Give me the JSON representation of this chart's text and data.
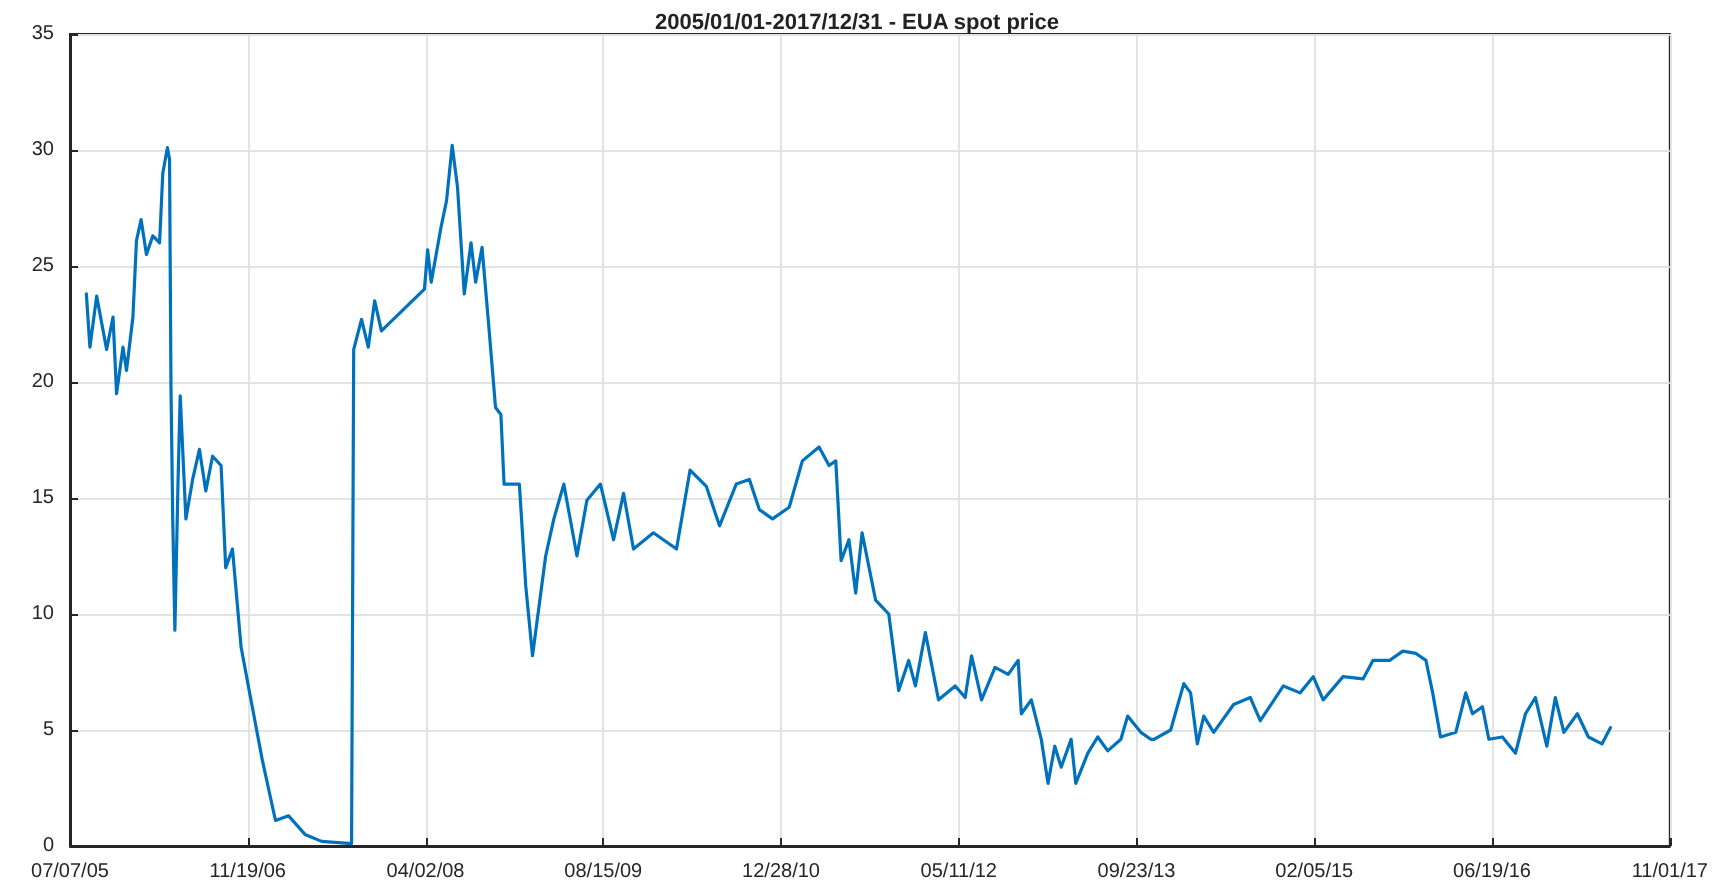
{
  "chart_data": {
    "type": "line",
    "title": "2005/01/01-2017/12/31 - EUA spot price",
    "x": [
      "2005-08-22",
      "2005-09-01",
      "2005-09-20",
      "2005-10-18",
      "2005-11-05",
      "2005-11-15",
      "2005-12-03",
      "2005-12-13",
      "2005-12-31",
      "2006-01-10",
      "2006-01-23",
      "2006-02-07",
      "2006-02-25",
      "2006-03-16",
      "2006-03-25",
      "2006-04-07",
      "2006-04-13",
      "2006-04-17",
      "2006-04-22",
      "2006-04-28",
      "2006-05-07",
      "2006-05-13",
      "2006-05-29",
      "2006-06-17",
      "2006-07-06",
      "2006-07-24",
      "2006-08-12",
      "2006-09-05",
      "2006-09-18",
      "2006-10-07",
      "2006-10-31",
      "2006-11-23",
      "2006-12-30",
      "2007-02-05",
      "2007-03-14",
      "2007-04-29",
      "2007-06-15",
      "2007-09-07",
      "2007-09-13",
      "2007-10-05",
      "2007-10-24",
      "2007-11-11",
      "2007-11-30",
      "2008-03-30",
      "2008-04-08",
      "2008-04-18",
      "2008-05-16",
      "2008-05-31",
      "2008-06-16",
      "2008-07-01",
      "2008-07-20",
      "2008-08-08",
      "2008-08-21",
      "2008-09-08",
      "2008-09-27",
      "2008-10-16",
      "2008-10-31",
      "2008-11-09",
      "2008-12-03",
      "2008-12-22",
      "2009-01-09",
      "2009-01-28",
      "2009-02-15",
      "2009-03-06",
      "2009-03-29",
      "2009-04-26",
      "2009-06-02",
      "2009-06-30",
      "2009-08-07",
      "2009-09-13",
      "2009-10-11",
      "2009-11-08",
      "2010-01-03",
      "2010-03-09",
      "2010-04-16",
      "2010-06-01",
      "2010-07-08",
      "2010-08-24",
      "2010-09-30",
      "2010-10-28",
      "2010-12-04",
      "2011-01-20",
      "2011-02-26",
      "2011-04-14",
      "2011-05-12",
      "2011-05-31",
      "2011-06-15",
      "2011-07-07",
      "2011-07-26",
      "2011-08-13",
      "2011-09-20",
      "2011-10-27",
      "2011-11-24",
      "2011-12-22",
      "2012-01-10",
      "2012-02-07",
      "2012-03-15",
      "2012-05-01",
      "2012-05-29",
      "2012-06-16",
      "2012-07-14",
      "2012-08-21",
      "2012-09-27",
      "2012-10-25",
      "2012-11-03",
      "2012-12-01",
      "2012-12-29",
      "2013-01-17",
      "2013-02-05",
      "2013-02-23",
      "2013-03-23",
      "2013-04-05",
      "2013-05-09",
      "2013-06-06",
      "2013-07-04",
      "2013-08-10",
      "2013-08-29",
      "2013-10-05",
      "2013-11-02",
      "2013-11-11",
      "2013-12-28",
      "2014-02-03",
      "2014-02-22",
      "2014-03-13",
      "2014-03-31",
      "2014-04-28",
      "2014-06-23",
      "2014-08-09",
      "2014-09-06",
      "2014-11-10",
      "2014-12-27",
      "2015-02-02",
      "2015-03-02",
      "2015-04-27",
      "2015-06-22",
      "2015-07-20",
      "2015-09-05",
      "2015-10-12",
      "2015-11-18",
      "2015-12-16",
      "2016-01-04",
      "2016-01-26",
      "2016-03-09",
      "2016-04-06",
      "2016-04-25",
      "2016-05-23",
      "2016-06-10",
      "2016-07-18",
      "2016-08-24",
      "2016-09-21",
      "2016-10-19",
      "2016-11-20",
      "2016-12-14",
      "2017-01-07",
      "2017-02-14",
      "2017-03-17",
      "2017-04-24",
      "2017-05-18"
    ],
    "series": [
      {
        "color": "#0072bd",
        "values": [
          23.8,
          21.5,
          23.7,
          21.4,
          22.8,
          19.5,
          21.5,
          20.5,
          22.8,
          26.1,
          27.0,
          25.5,
          26.3,
          26.0,
          29.0,
          30.1,
          29.6,
          19.8,
          14.1,
          9.3,
          15.8,
          19.4,
          14.1,
          15.8,
          17.1,
          15.3,
          16.8,
          16.4,
          12.0,
          12.8,
          8.6,
          6.7,
          3.7,
          1.1,
          1.3,
          0.5,
          0.2,
          0.1,
          21.4,
          22.7,
          21.5,
          23.5,
          22.2,
          24.0,
          25.7,
          24.3,
          26.7,
          27.8,
          30.2,
          28.4,
          23.8,
          26.0,
          24.3,
          25.8,
          22.4,
          18.9,
          18.6,
          15.6,
          15.6,
          15.6,
          11.2,
          8.2,
          10.3,
          12.5,
          14.1,
          15.6,
          12.5,
          14.9,
          15.6,
          13.2,
          15.2,
          12.8,
          13.5,
          12.8,
          16.2,
          15.5,
          13.8,
          15.6,
          15.8,
          14.5,
          14.1,
          14.6,
          16.6,
          17.2,
          16.4,
          16.6,
          12.3,
          13.2,
          10.9,
          13.5,
          10.6,
          10.0,
          6.7,
          8.0,
          6.9,
          9.2,
          6.3,
          6.9,
          6.4,
          8.2,
          6.3,
          7.7,
          7.4,
          8.0,
          5.7,
          6.3,
          4.6,
          2.7,
          4.3,
          3.4,
          4.6,
          2.7,
          4.0,
          4.7,
          4.1,
          4.6,
          5.6,
          4.9,
          4.6,
          4.6,
          5.0,
          7.0,
          6.6,
          4.4,
          5.6,
          4.9,
          6.1,
          6.4,
          5.4,
          6.9,
          6.6,
          7.3,
          6.3,
          7.3,
          7.2,
          8.0,
          8.0,
          8.4,
          8.3,
          8.0,
          6.6,
          4.7,
          4.9,
          6.6,
          5.7,
          6.0,
          4.6,
          4.7,
          4.0,
          5.7,
          6.4,
          4.3,
          6.4,
          4.9,
          5.7,
          4.7,
          4.4,
          5.1
        ]
      }
    ],
    "xlim": [
      "2005-07-07",
      "2017-11-01"
    ],
    "xticks": [
      {
        "value": "2005-07-07",
        "label": "07/07/05"
      },
      {
        "value": "2006-11-19",
        "label": "11/19/06"
      },
      {
        "value": "2008-04-02",
        "label": "04/02/08"
      },
      {
        "value": "2009-08-15",
        "label": "08/15/09"
      },
      {
        "value": "2010-12-28",
        "label": "12/28/10"
      },
      {
        "value": "2012-05-11",
        "label": "05/11/12"
      },
      {
        "value": "2013-09-23",
        "label": "09/23/13"
      },
      {
        "value": "2015-02-05",
        "label": "02/05/15"
      },
      {
        "value": "2016-06-19",
        "label": "06/19/16"
      },
      {
        "value": "2017-11-01",
        "label": "11/01/17"
      }
    ],
    "ylim": [
      0,
      35
    ],
    "yticks": [
      0,
      5,
      10,
      15,
      20,
      25,
      30,
      35
    ],
    "grid": true,
    "marker": "none",
    "line_style": "solid"
  }
}
